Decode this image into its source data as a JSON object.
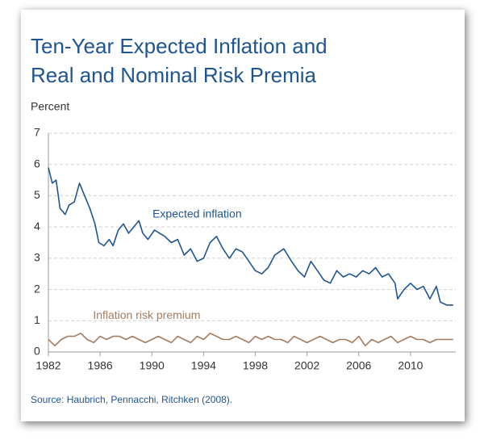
{
  "chart_data": {
    "type": "line",
    "title_lines": [
      "Ten-Year Expected Inflation and",
      "Real and Nominal Risk Premia"
    ],
    "y_axis_label": "Percent",
    "source": "Source: Haubrich,  Pennacchi,  Ritchken (2008).",
    "xlim": [
      1982,
      2013.5
    ],
    "xticks": [
      1982,
      1986,
      1990,
      1994,
      1998,
      2002,
      2006,
      2010
    ],
    "ylim": [
      0,
      7
    ],
    "yticks": [
      0,
      1,
      2,
      3,
      4,
      5,
      6,
      7
    ],
    "grid": true,
    "series": [
      {
        "name": "Expected inflation",
        "color": "#1f5590",
        "x": [
          1982.0,
          1982.3,
          1982.6,
          1982.9,
          1983.3,
          1983.6,
          1984.0,
          1984.4,
          1984.8,
          1985.2,
          1985.6,
          1985.9,
          1986.3,
          1986.7,
          1987.0,
          1987.4,
          1987.8,
          1988.2,
          1988.6,
          1989.0,
          1989.3,
          1989.7,
          1990.2,
          1990.6,
          1991.0,
          1991.5,
          1992.0,
          1992.5,
          1993.0,
          1993.5,
          1994.0,
          1994.5,
          1995.0,
          1995.5,
          1996.0,
          1996.5,
          1997.0,
          1997.5,
          1998.0,
          1998.5,
          1999.0,
          1999.5,
          2000.2,
          2000.8,
          2001.3,
          2001.8,
          2002.3,
          2002.8,
          2003.3,
          2003.8,
          2004.3,
          2004.8,
          2005.3,
          2005.8,
          2006.3,
          2006.8,
          2007.3,
          2007.8,
          2008.3,
          2008.8,
          2009.0,
          2009.5,
          2010.0,
          2010.5,
          2011.0,
          2011.5,
          2012.0,
          2012.3,
          2012.8,
          2013.3
        ],
        "values": [
          5.9,
          5.4,
          5.5,
          4.6,
          4.4,
          4.7,
          4.8,
          5.4,
          5.0,
          4.6,
          4.1,
          3.5,
          3.4,
          3.6,
          3.4,
          3.9,
          4.1,
          3.8,
          4.0,
          4.2,
          3.8,
          3.6,
          3.9,
          3.8,
          3.7,
          3.5,
          3.6,
          3.1,
          3.3,
          2.9,
          3.0,
          3.5,
          3.7,
          3.3,
          3.0,
          3.3,
          3.2,
          2.9,
          2.6,
          2.5,
          2.7,
          3.1,
          3.3,
          2.9,
          2.6,
          2.4,
          2.9,
          2.6,
          2.3,
          2.2,
          2.6,
          2.4,
          2.5,
          2.4,
          2.6,
          2.5,
          2.7,
          2.4,
          2.5,
          2.2,
          1.7,
          2.0,
          2.2,
          2.0,
          2.1,
          1.7,
          2.1,
          1.6,
          1.5,
          1.5
        ]
      },
      {
        "name": "Inflation risk premium",
        "color": "#a47c5e",
        "x": [
          1982.0,
          1982.5,
          1983.0,
          1983.5,
          1984.0,
          1984.5,
          1985.0,
          1985.5,
          1986.0,
          1986.5,
          1987.0,
          1987.5,
          1988.0,
          1988.5,
          1989.0,
          1989.5,
          1990.0,
          1990.5,
          1991.0,
          1991.5,
          1992.0,
          1992.5,
          1993.0,
          1993.5,
          1994.0,
          1994.5,
          1995.0,
          1995.5,
          1996.0,
          1996.5,
          1997.0,
          1997.5,
          1998.0,
          1998.5,
          1999.0,
          1999.5,
          2000.0,
          2000.5,
          2001.0,
          2001.5,
          2002.0,
          2002.5,
          2003.0,
          2003.5,
          2004.0,
          2004.5,
          2005.0,
          2005.5,
          2006.0,
          2006.5,
          2007.0,
          2007.5,
          2008.0,
          2008.5,
          2009.0,
          2009.5,
          2010.0,
          2010.5,
          2011.0,
          2011.5,
          2012.0,
          2012.5,
          2013.0,
          2013.3
        ],
        "values": [
          0.4,
          0.2,
          0.4,
          0.5,
          0.5,
          0.6,
          0.4,
          0.3,
          0.5,
          0.4,
          0.5,
          0.5,
          0.4,
          0.5,
          0.4,
          0.3,
          0.4,
          0.5,
          0.4,
          0.3,
          0.5,
          0.4,
          0.3,
          0.5,
          0.4,
          0.6,
          0.5,
          0.4,
          0.4,
          0.5,
          0.4,
          0.3,
          0.5,
          0.4,
          0.5,
          0.4,
          0.4,
          0.3,
          0.5,
          0.4,
          0.3,
          0.4,
          0.5,
          0.4,
          0.3,
          0.4,
          0.4,
          0.3,
          0.5,
          0.2,
          0.4,
          0.3,
          0.4,
          0.5,
          0.3,
          0.4,
          0.5,
          0.4,
          0.4,
          0.3,
          0.4,
          0.4,
          0.4,
          0.4
        ]
      }
    ]
  }
}
